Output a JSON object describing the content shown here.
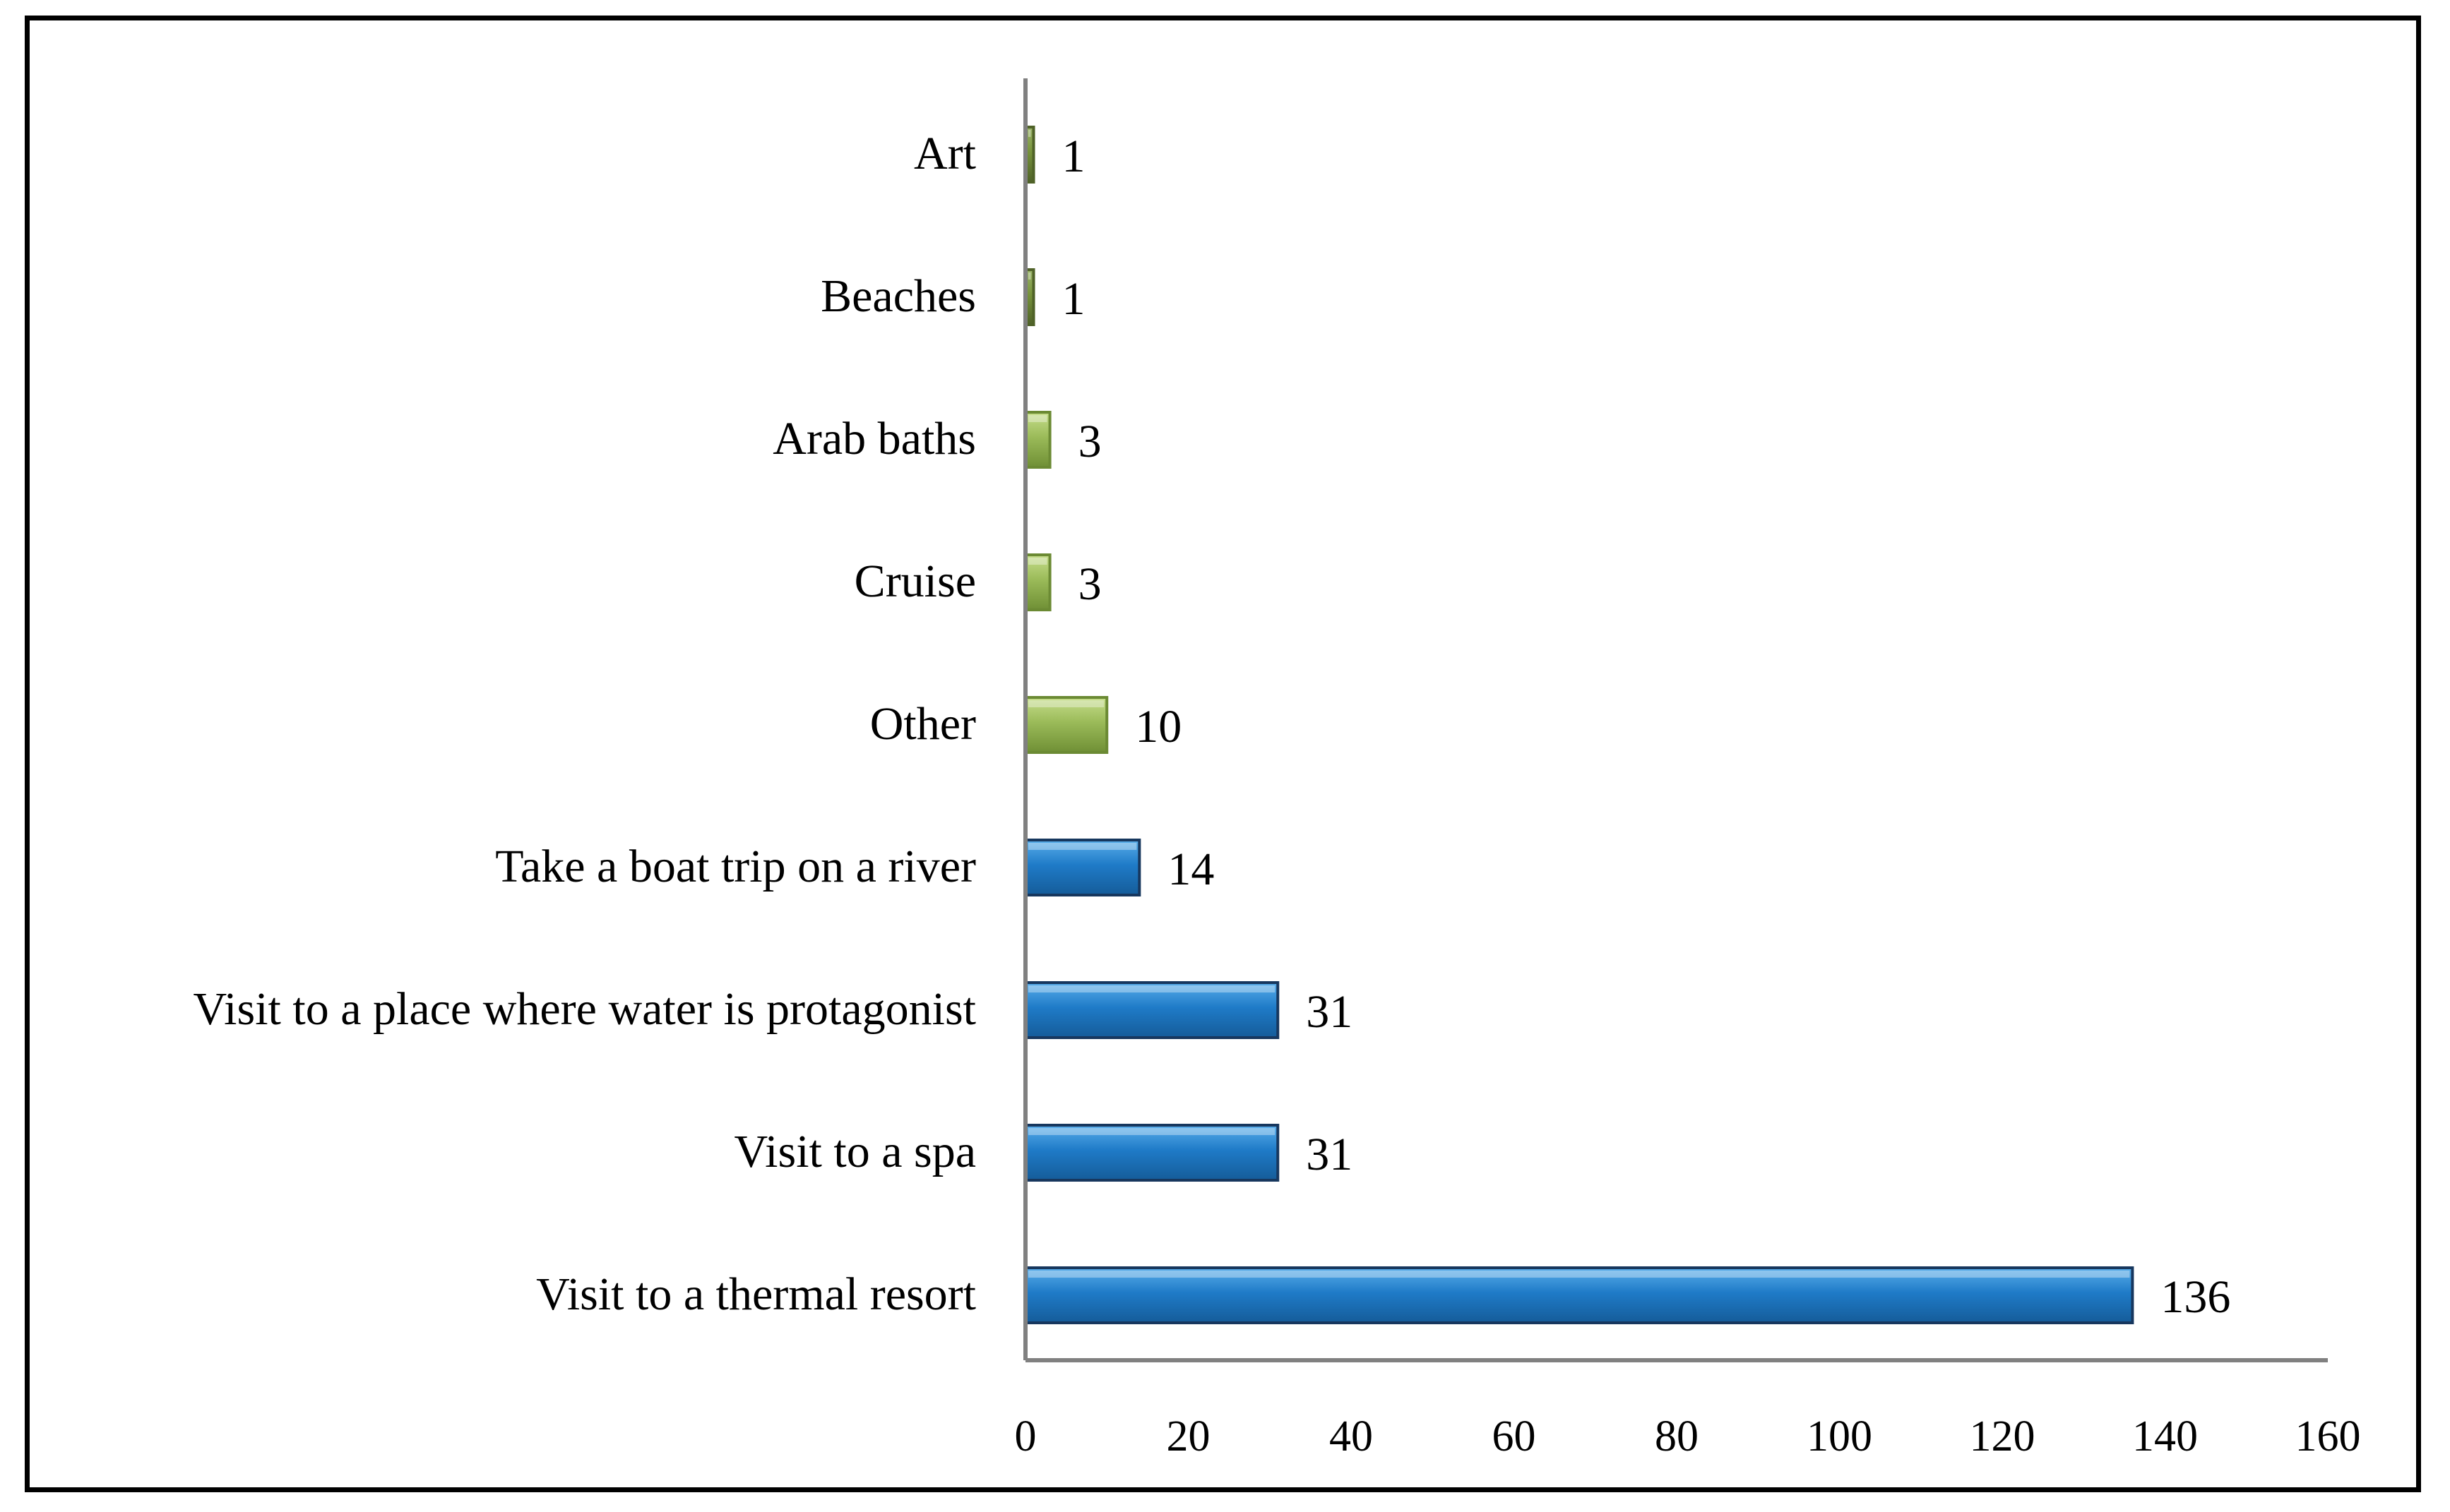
{
  "chart_data": {
    "type": "bar",
    "orientation": "horizontal",
    "categories": [
      "Art",
      "Beaches",
      "Arab baths",
      "Cruise",
      "Other",
      "Take a boat trip on a river",
      "Visit to a place where water is protagonist",
      "Visit to a spa",
      "Visit to a thermal resort"
    ],
    "values": [
      1,
      1,
      3,
      3,
      10,
      14,
      31,
      31,
      136
    ],
    "bar_colors": [
      "#77933C",
      "#77933C",
      "#9BBB59",
      "#9BBB59",
      "#9BBB59",
      "#1F7BC8",
      "#1F7BC8",
      "#1F7BC8",
      "#1F7BC8"
    ],
    "bar_edge_colors": [
      "#4F6228",
      "#4F6228",
      "#6B8A33",
      "#6B8A33",
      "#6B8A33",
      "#17375E",
      "#17375E",
      "#17375E",
      "#17375E"
    ],
    "xlim": [
      0,
      160
    ],
    "xticks": [
      "0",
      "20",
      "40",
      "60",
      "80",
      "100",
      "120",
      "140",
      "160"
    ],
    "grid": false,
    "legend": false,
    "title": "",
    "xlabel": "",
    "ylabel": ""
  }
}
